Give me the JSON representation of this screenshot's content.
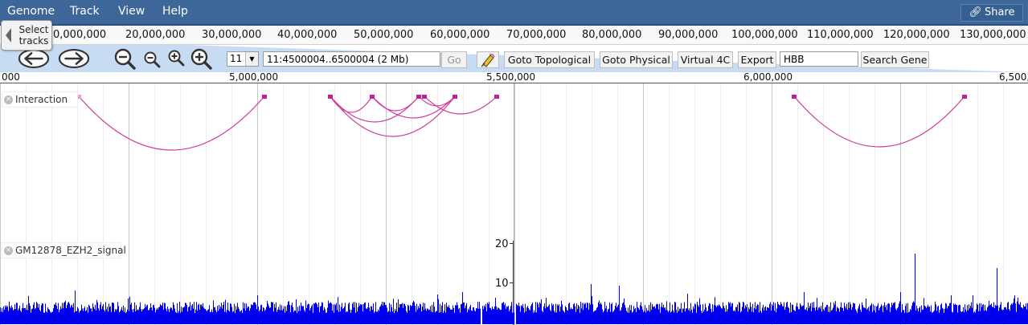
{
  "menu": {
    "items": [
      "Genome",
      "Track",
      "View",
      "Help"
    ],
    "share_label": "Share"
  },
  "overview": {
    "labels": [
      "0,000,000",
      "20,000,000",
      "30,000,000",
      "40,000,000",
      "50,000,000",
      "60,000,000",
      "70,000,000",
      "80,000,000",
      "90,000,000",
      "100,000,000",
      "110,000,000",
      "120,000,000",
      "130,000,000"
    ]
  },
  "select_tracks": {
    "label_line1": "Select",
    "label_line2": "tracks"
  },
  "toolbar": {
    "chromosome": "11",
    "location": "11:4500004..6500004 (2 Mb)",
    "go_label": "Go",
    "goto_topological_label": "Goto Topological",
    "goto_physical_label": "Goto Physical",
    "virtual_4c_label": "Virtual 4C",
    "export_label": "Export",
    "gene_search_value": "HBB",
    "search_gene_label": "Search Gene"
  },
  "ruler": {
    "labels": [
      "000",
      "5,000,000",
      "5,500,000",
      "6,000,000",
      "6,500,"
    ]
  },
  "tracks": {
    "interaction_label": "Interaction",
    "signal_label": "GM12878_EZH2_signal",
    "signal_axis": [
      "20",
      "10"
    ]
  },
  "colors": {
    "menu_bg": "#3d6699",
    "arc": "#d03c9c",
    "signal": "#0000ee"
  },
  "icons": {
    "back": "back-arrow-icon",
    "forward": "forward-arrow-icon",
    "zoom_out_big": "zoom-out-icon",
    "zoom_out_small": "zoom-out-small-icon",
    "zoom_in_small": "zoom-in-small-icon",
    "zoom_in_big": "zoom-in-icon",
    "highlight": "highlighter-icon",
    "share": "link-icon"
  }
}
